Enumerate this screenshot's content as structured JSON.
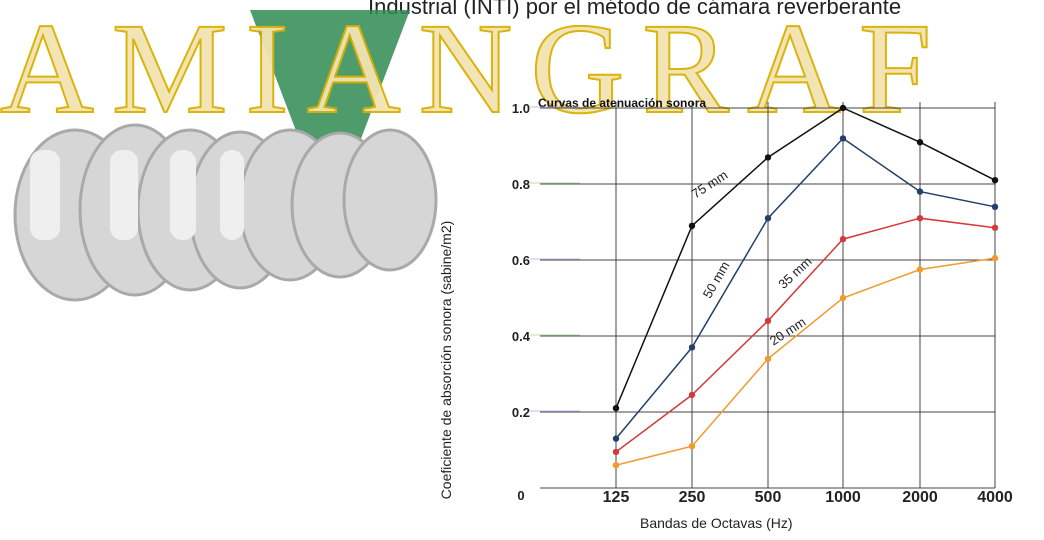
{
  "header": {
    "text": "Industrial (INTI) por el método de cámara reverberante"
  },
  "watermark": {
    "text": "AMIANGRAF",
    "stroke_color": "#d8b100",
    "fill_color": "#f3e3b3"
  },
  "logo": {
    "colors": [
      "#c9c9c9",
      "#2f8a52"
    ]
  },
  "chart_data": {
    "type": "line",
    "title": "Curvas de atenuación sonora",
    "xlabel": "Bandas de Octavas (Hz)",
    "ylabel": "Coeficiente de absorción sonora (sabine/m2)",
    "categories": [
      "125",
      "250",
      "500",
      "1000",
      "2000",
      "4000"
    ],
    "ylim": [
      0,
      1.0
    ],
    "yticks": [
      "0",
      "0.2",
      "0.4",
      "0.6",
      "0.8",
      "1.0"
    ],
    "grid": true,
    "series": [
      {
        "name": "75 mm",
        "color": "#111111",
        "values": [
          0.21,
          0.69,
          0.87,
          1.0,
          0.91,
          0.81
        ]
      },
      {
        "name": "50 mm",
        "color": "#22406a",
        "values": [
          0.13,
          0.37,
          0.71,
          0.92,
          0.78,
          0.74
        ]
      },
      {
        "name": "35 mm",
        "color": "#d33a3a",
        "values": [
          0.095,
          0.245,
          0.44,
          0.655,
          0.71,
          0.685
        ]
      },
      {
        "name": "20 mm",
        "color": "#f29a2e",
        "values": [
          0.06,
          0.11,
          0.34,
          0.5,
          0.575,
          0.605
        ]
      }
    ]
  }
}
